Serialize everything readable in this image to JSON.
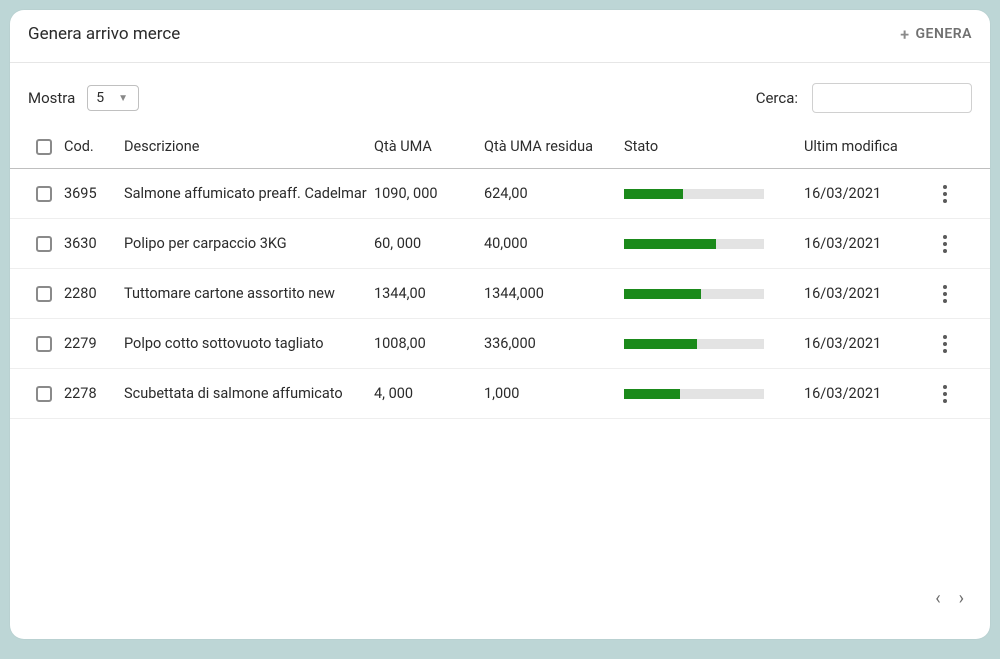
{
  "colors": {
    "pageBg": "#bdd6d6",
    "cardBg": "#ffffff",
    "border": "#e6e6e6",
    "headerBorder": "#bfbfbf",
    "text": "#2b2b2b",
    "muted": "#707070",
    "checkbox": "#8a8a8a",
    "progressTrack": "#e3e3e3",
    "progressFill": "#1b8a1b"
  },
  "header": {
    "title": "Genera arrivo merce",
    "generaLabel": "GENERA",
    "plus": "+"
  },
  "controls": {
    "mostraLabel": "Mostra",
    "mostraValue": "5",
    "cercaLabel": "Cerca:",
    "cercaValue": ""
  },
  "columns": {
    "cod": "Cod.",
    "descrizione": "Descrizione",
    "qtaUma": "Qtà UMA",
    "qtaUmaResidua": "Qtà UMA residua",
    "stato": "Stato",
    "ultimModifica": "Ultim modifica"
  },
  "rows": [
    {
      "cod": "3695",
      "descrizione": "Salmone affumicato preaff. Cadelmar",
      "qtaUma": "1090, 000",
      "qtaUmaResidua": "624,00",
      "statoPct": 42,
      "ultimModifica": "16/03/2021"
    },
    {
      "cod": "3630",
      "descrizione": "Polipo per carpaccio 3KG",
      "qtaUma": "60, 000",
      "qtaUmaResidua": "40,000",
      "statoPct": 66,
      "ultimModifica": "16/03/2021"
    },
    {
      "cod": "2280",
      "descrizione": "Tuttomare cartone assortito new",
      "qtaUma": "1344,00",
      "qtaUmaResidua": "1344,000",
      "statoPct": 55,
      "ultimModifica": "16/03/2021"
    },
    {
      "cod": "2279",
      "descrizione": "Polpo cotto sottovuoto tagliato",
      "qtaUma": "1008,00",
      "qtaUmaResidua": "336,000",
      "statoPct": 52,
      "ultimModifica": "16/03/2021"
    },
    {
      "cod": "2278",
      "descrizione": "Scubettata di salmone affumicato",
      "qtaUma": "4, 000",
      "qtaUmaResidua": "1,000",
      "statoPct": 40,
      "ultimModifica": "16/03/2021"
    }
  ],
  "pager": {
    "prev": "‹",
    "next": "›"
  }
}
